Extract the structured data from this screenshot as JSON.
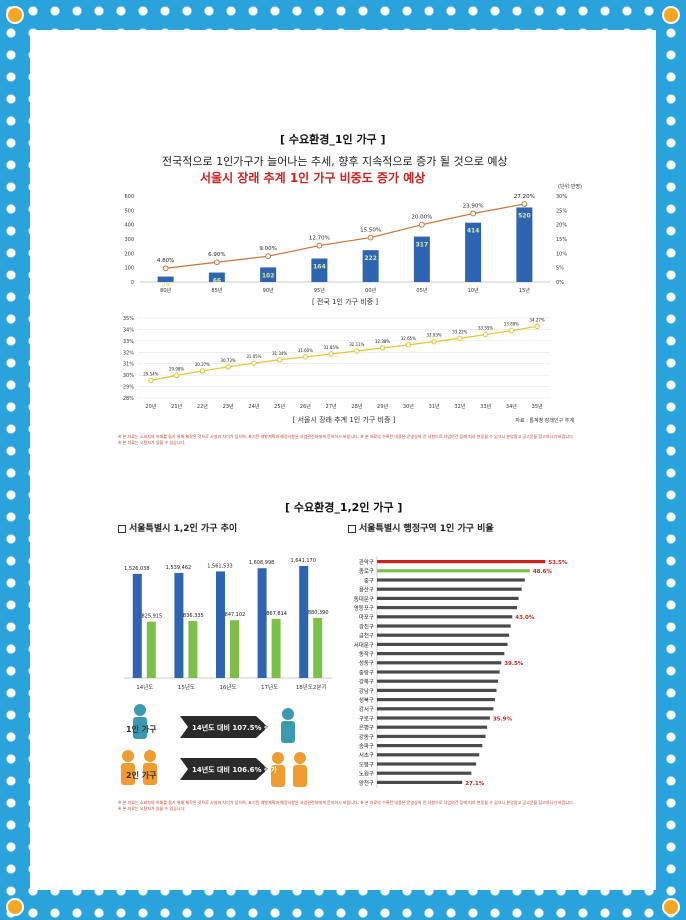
{
  "top": {
    "section_title": "[ 수요환경_1인 가구 ]",
    "subtitle": "전국적으로 1인가구가 늘어나는 추세, 향후 지속적으로 증가 될 것으로 예상",
    "headline": "서울시 장래 추계 1인 가구 비중도 증가 예상",
    "unit": "(단위:만명)",
    "note": "※ 본 자료는 소비자의 이해를 돕기 위해 제작된 것으로 사실과 차이가 있으며, 표기된 개발계획과 예정사항은 사업관련처에게 문의하시 바랍니다. ※ 본 자료의 수록된 내용은 운영상의 전 사항으로 사업여건 등에 따라 변동될 수 있으니 분양광고 공고문을 참고하시기 바랍니다. ※ 본 자료는 오탈자가 있을 수 있습니다."
  },
  "bottom": {
    "section_title": "[ 수요환경_1,2인 가구 ]",
    "left_title": "서울특별시 1,2인 가구 추이",
    "right_title": "서울특별시 행정구역 1인 가구 비율",
    "legend_one": "1인 가구",
    "legend_two": "2인 가구",
    "arrow_one": "14년도 대비 107.5% 증가",
    "arrow_two": "14년도 대비 106.6% 증가",
    "note": "※ 본 자료는 소비자의 이해를 돕기 위해 제작된 것으로 사실과 차이가 있으며, 표기된 개발계획과 예정사항은 사업관련처에게 문의하시 바랍니다. ※ 본 자료의 수록된 내용은 운영상의 전 사항으로 사업여건 등에 따라 변동될 수 있으니 분양광고 공고문을 참고하시기 바랍니다. ※ 본 자료는 오탈자가 있을 수 있습니다."
  },
  "colors": {
    "bar_blue": "#2f64b0",
    "bar_green": "#7cc04a",
    "line_orange": "#c8743a",
    "line_yellow": "#e8c22f",
    "accent_red": "#d0211c",
    "gray_bar": "#4a4a4a"
  },
  "chart_data": [
    {
      "type": "bar",
      "categories": [
        "80년",
        "85년",
        "90년",
        "95년",
        "00년",
        "05년",
        "10년",
        "15년"
      ],
      "series": [
        {
          "values": [
            38,
            66,
            102,
            164,
            222,
            317,
            414,
            520
          ],
          "labels": [
            "38",
            "66",
            "102",
            "164",
            "222",
            "317",
            "414",
            "520"
          ]
        },
        {
          "values": [
            4.8,
            6.9,
            9.0,
            12.7,
            15.5,
            20.0,
            23.9,
            27.2
          ],
          "labels": [
            "4.80%",
            "6.90%",
            "9.00%",
            "12.70%",
            "15.50%",
            "20.00%",
            "23.90%",
            "27.20%"
          ]
        }
      ],
      "y_ticks": [
        "600",
        "500",
        "400",
        "300",
        "200",
        "100",
        "0"
      ],
      "y2_ticks": [
        "30%",
        "25%",
        "20%",
        "15%",
        "10%",
        "5%",
        "0%"
      ],
      "ylim": [
        0,
        600
      ],
      "y2lim": [
        0,
        30
      ],
      "xlabel": "[ 전국 1인 가구 비중 ]"
    },
    {
      "type": "line",
      "categories": [
        "20년",
        "21년",
        "22년",
        "23년",
        "24년",
        "25년",
        "26년",
        "27년",
        "28년",
        "29년",
        "30년",
        "31년",
        "32년",
        "33년",
        "34년",
        "35년"
      ],
      "values": [
        29.54,
        29.98,
        30.37,
        30.73,
        31.05,
        31.34,
        31.6,
        31.85,
        32.11,
        32.38,
        32.65,
        32.93,
        33.22,
        33.55,
        33.89,
        34.27
      ],
      "labels": [
        "29.54%",
        "29.98%",
        "30.37%",
        "30.73%",
        "31.05%",
        "31.34%",
        "31.60%",
        "31.85%",
        "32.11%",
        "32.38%",
        "32.65%",
        "32.93%",
        "33.22%",
        "33.55%",
        "33.89%",
        "34.27%"
      ],
      "y_ticks": [
        "35%",
        "34%",
        "33%",
        "32%",
        "31%",
        "30%",
        "29%",
        "28%"
      ],
      "ylim": [
        28,
        35
      ],
      "xlabel": "[ 서울시 장래 추계 1인 가구 비중 ]",
      "source": "자료 : 통계청 장래인구 추계"
    },
    {
      "type": "bar",
      "categories": [
        "14년도",
        "15년도",
        "16년도",
        "17년도",
        "18년도2분기"
      ],
      "series": [
        {
          "values": [
            1526038,
            1539462,
            1561533,
            1608998,
            1641170
          ],
          "labels": [
            "1,526,038",
            "1,539,462",
            "1,561,533",
            "1,608,998",
            "1,641,170"
          ]
        },
        {
          "values": [
            825915,
            836335,
            847102,
            867814,
            880390
          ],
          "labels": [
            "825,915",
            "836,335",
            "847,102",
            "867,814",
            "880,390"
          ]
        }
      ]
    },
    {
      "type": "bar",
      "orientation": "horizontal",
      "categories": [
        "관악구",
        "종로구",
        "중구",
        "용산구",
        "동대문구",
        "영등포구",
        "마포구",
        "광진구",
        "금천구",
        "서대문구",
        "동작구",
        "성동구",
        "중랑구",
        "강북구",
        "강남구",
        "성북구",
        "강서구",
        "구로구",
        "은평구",
        "강동구",
        "송파구",
        "서초구",
        "도봉구",
        "노원구",
        "양천구"
      ],
      "values": [
        53.5,
        48.6,
        47.0,
        46.0,
        45.0,
        44.5,
        43.0,
        42.5,
        42.0,
        41.5,
        40.5,
        39.5,
        39.0,
        38.5,
        38.0,
        37.5,
        37.0,
        35.9,
        35.0,
        34.5,
        33.5,
        32.5,
        31.5,
        30.0,
        27.1
      ],
      "labeled": {
        "관악구": "53.5%",
        "종로구": "48.6%",
        "마포구": "43.0%",
        "성동구": "39.5%",
        "구로구": "35.9%",
        "양천구": "27.1%"
      },
      "highlight": [
        "관악구",
        "종로구"
      ]
    }
  ]
}
